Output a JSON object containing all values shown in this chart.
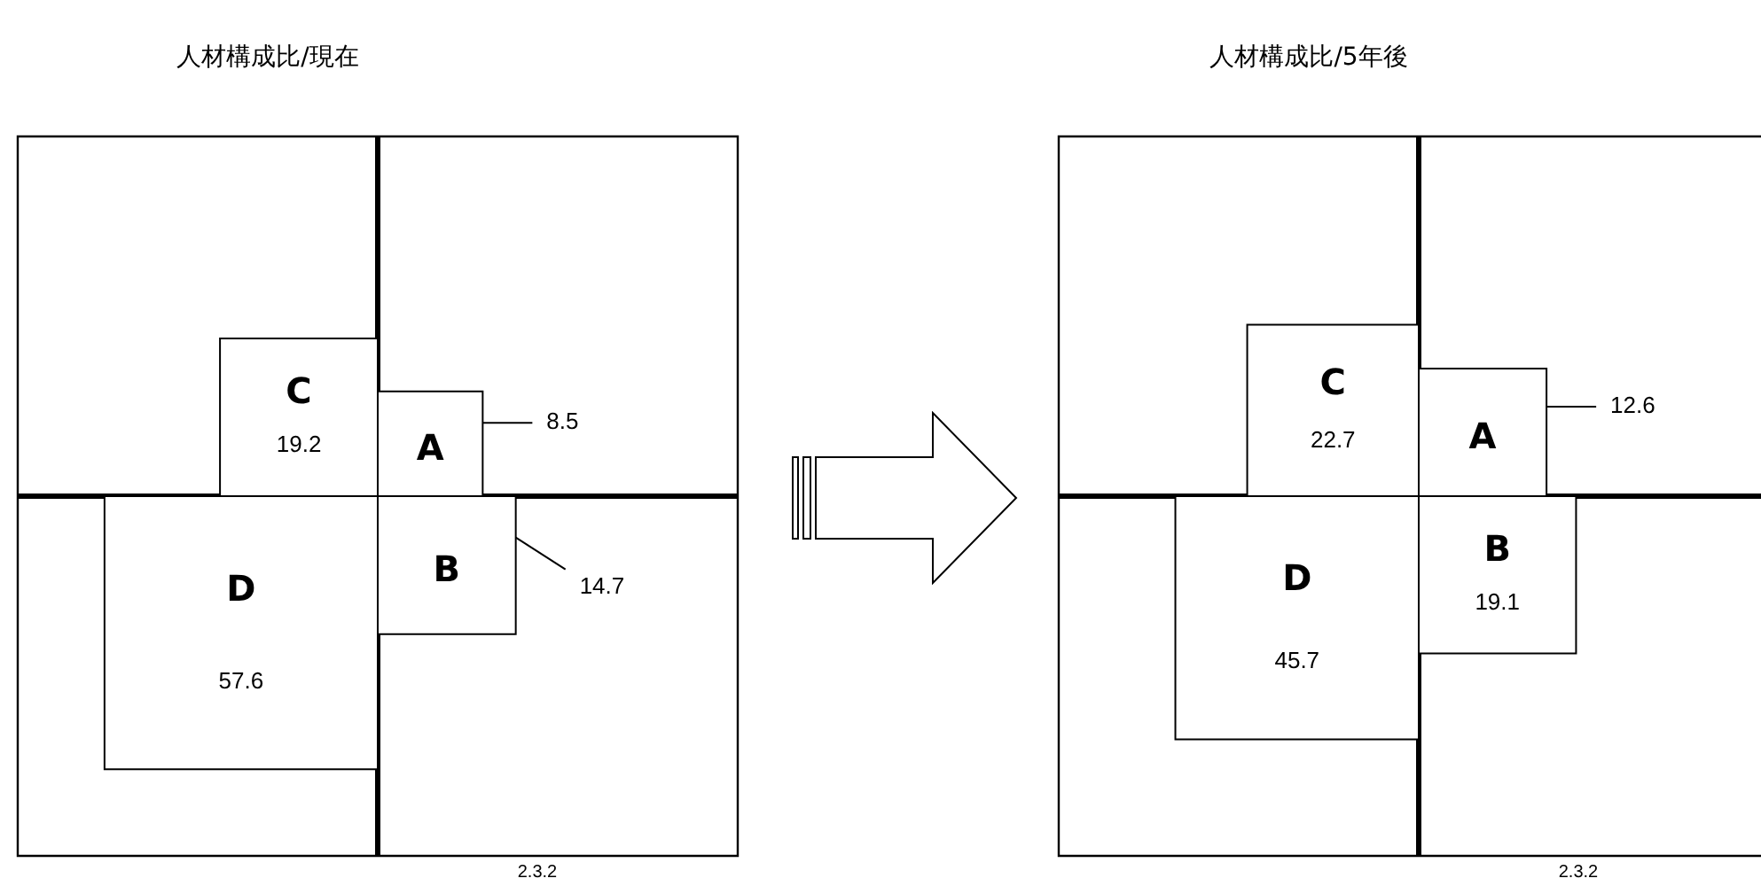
{
  "chart_data": [
    {
      "type": "other",
      "title": "人材構成比/現在",
      "categories": [
        "A",
        "B",
        "C",
        "D"
      ],
      "values": [
        8.5,
        14.7,
        19.2,
        57.6
      ],
      "data_labels": true,
      "annotations": [
        "2.3.2"
      ]
    },
    {
      "type": "other",
      "title": "人材構成比/5年後",
      "categories": [
        "A",
        "B",
        "C",
        "D"
      ],
      "values": [
        12.6,
        19.1,
        22.7,
        45.7
      ],
      "data_labels": true,
      "annotations": [
        "2.3.2"
      ]
    }
  ]
}
